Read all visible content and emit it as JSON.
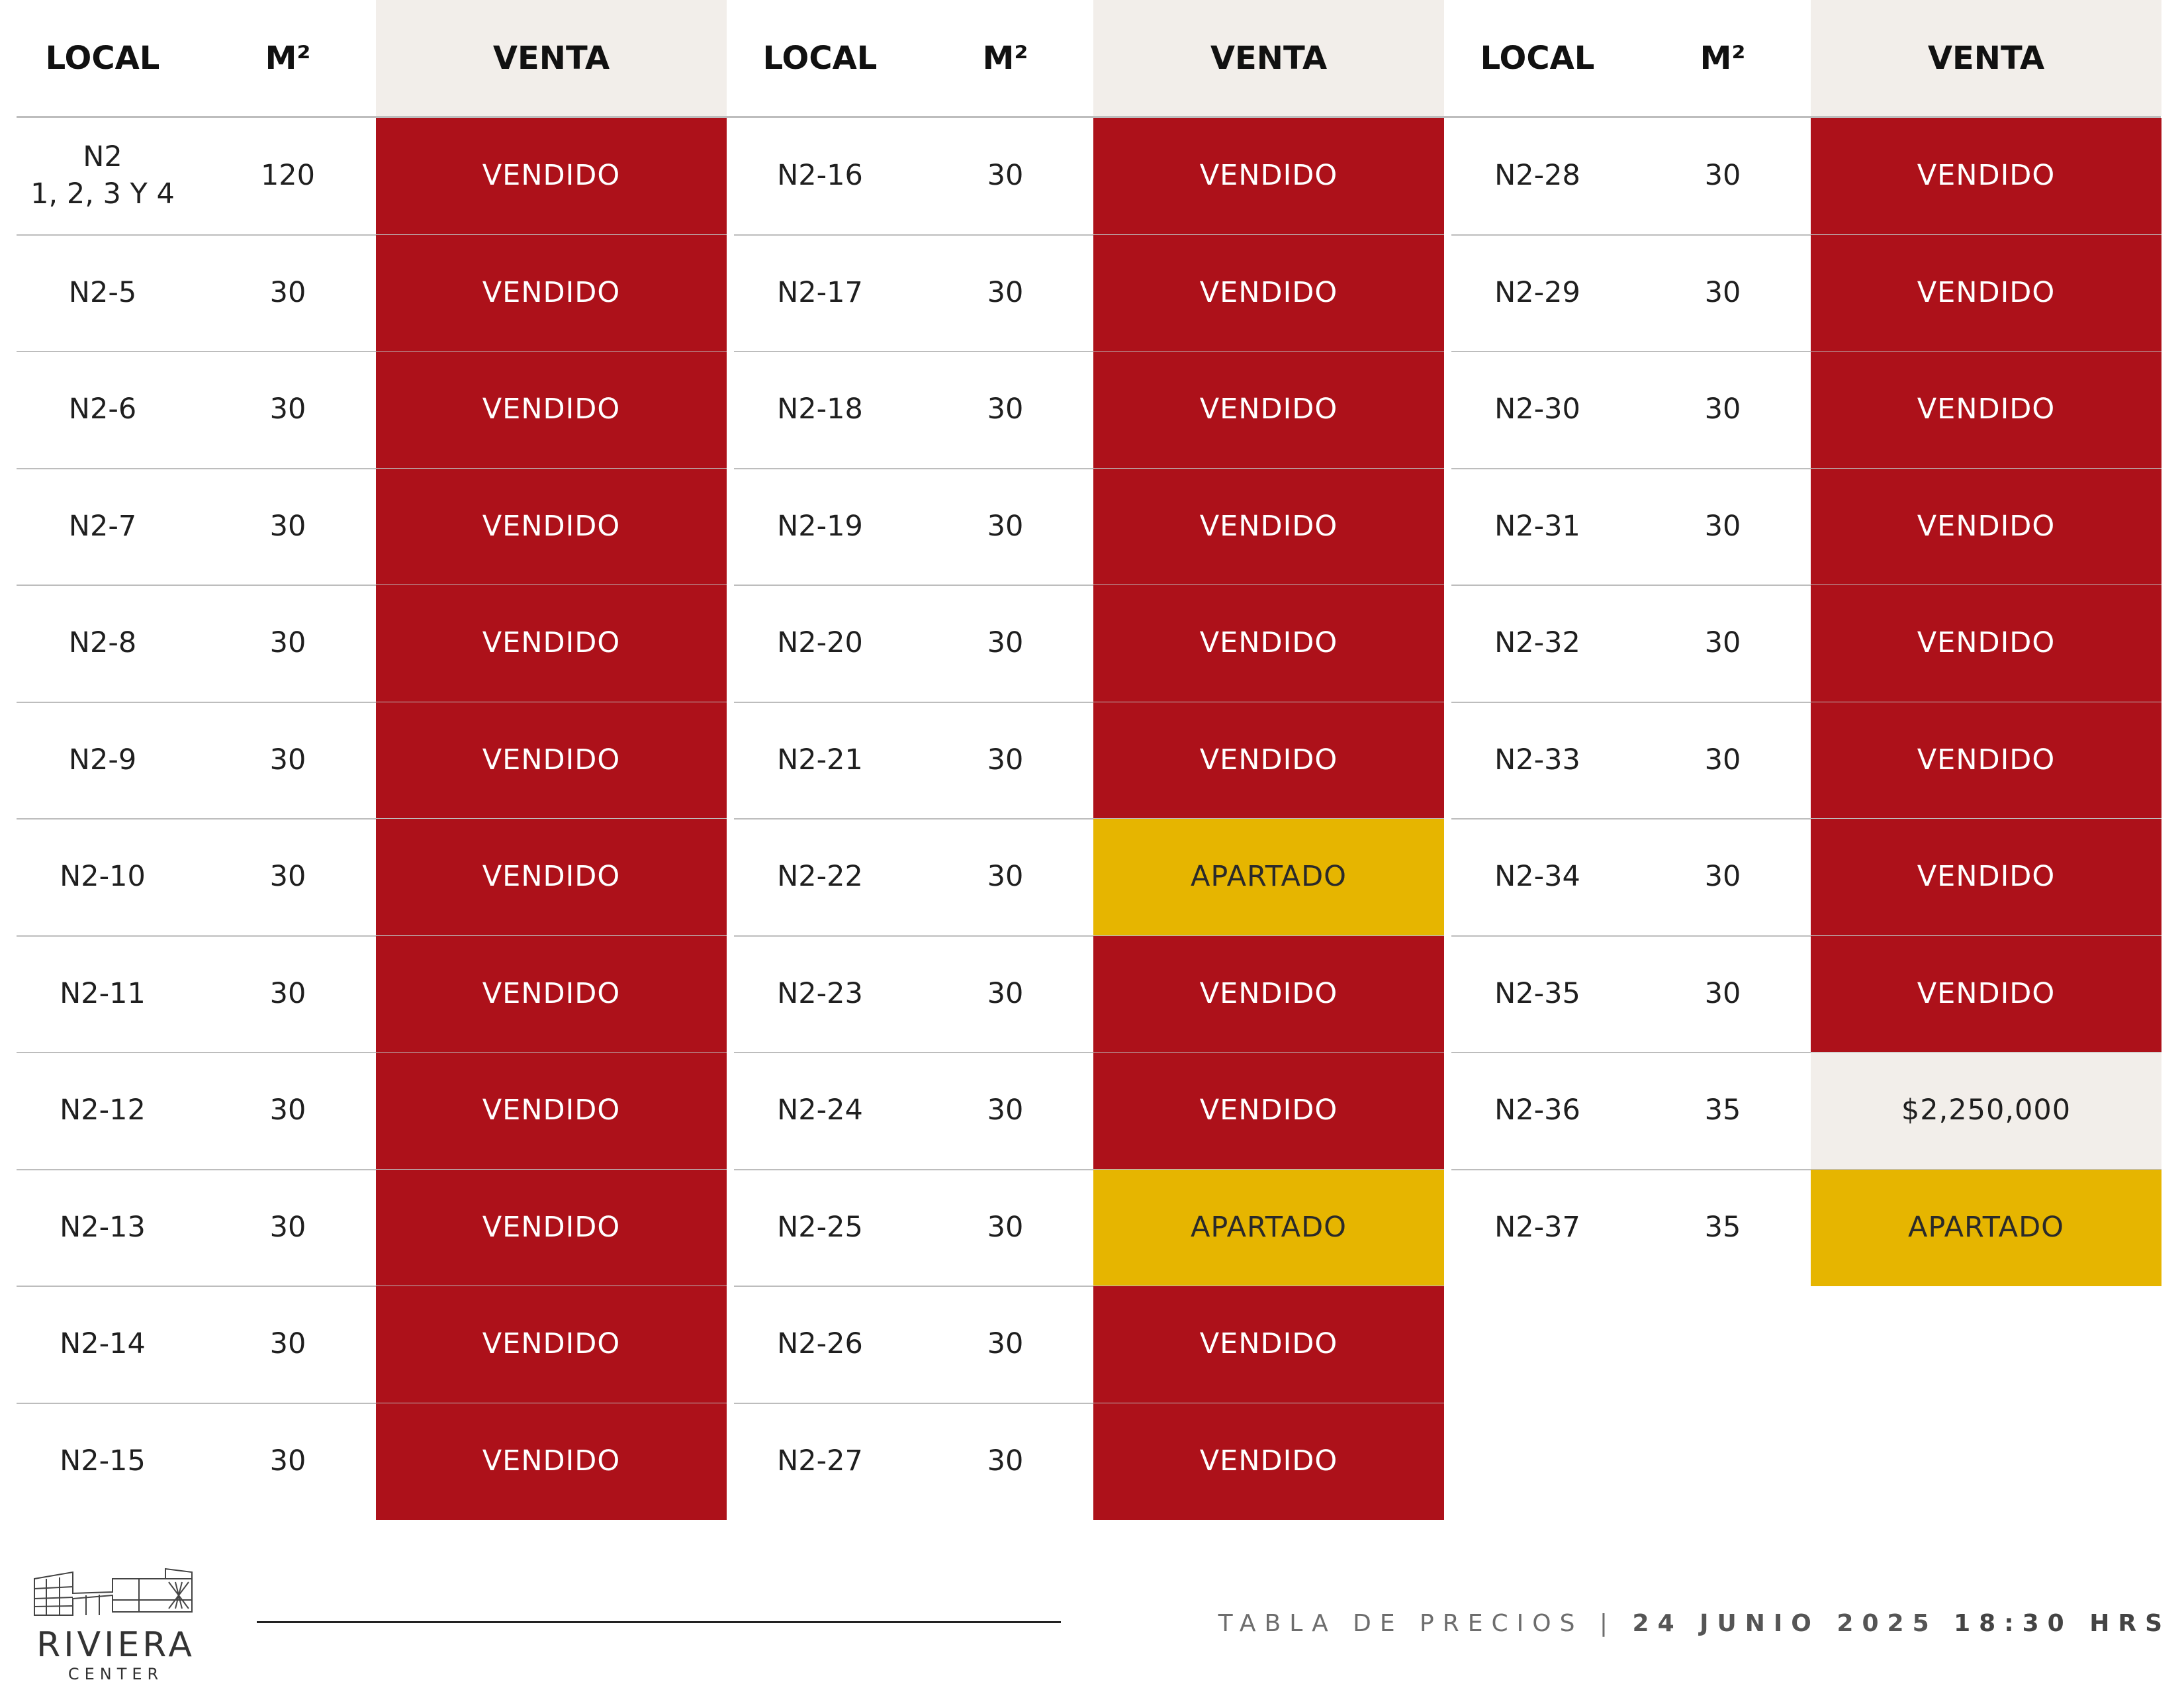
{
  "header": {
    "groups": [
      {
        "local": "LOCAL",
        "m2": "M²",
        "venta": "VENTA"
      },
      {
        "local": "LOCAL",
        "m2": "M²",
        "venta": "VENTA"
      },
      {
        "local": "LOCAL",
        "m2": "M²",
        "venta": "VENTA"
      }
    ]
  },
  "groups": [
    {
      "rows": [
        {
          "local": "N2\n1, 2, 3 Y 4",
          "m2": "120",
          "venta": "VENDIDO",
          "status": "vendido"
        },
        {
          "local": "N2-5",
          "m2": "30",
          "venta": "VENDIDO",
          "status": "vendido"
        },
        {
          "local": "N2-6",
          "m2": "30",
          "venta": "VENDIDO",
          "status": "vendido"
        },
        {
          "local": "N2-7",
          "m2": "30",
          "venta": "VENDIDO",
          "status": "vendido"
        },
        {
          "local": "N2-8",
          "m2": "30",
          "venta": "VENDIDO",
          "status": "vendido"
        },
        {
          "local": "N2-9",
          "m2": "30",
          "venta": "VENDIDO",
          "status": "vendido"
        },
        {
          "local": "N2-10",
          "m2": "30",
          "venta": "VENDIDO",
          "status": "vendido"
        },
        {
          "local": "N2-11",
          "m2": "30",
          "venta": "VENDIDO",
          "status": "vendido"
        },
        {
          "local": "N2-12",
          "m2": "30",
          "venta": "VENDIDO",
          "status": "vendido"
        },
        {
          "local": "N2-13",
          "m2": "30",
          "venta": "VENDIDO",
          "status": "vendido"
        },
        {
          "local": "N2-14",
          "m2": "30",
          "venta": "VENDIDO",
          "status": "vendido"
        },
        {
          "local": "N2-15",
          "m2": "30",
          "venta": "VENDIDO",
          "status": "vendido"
        }
      ]
    },
    {
      "rows": [
        {
          "local": "N2-16",
          "m2": "30",
          "venta": "VENDIDO",
          "status": "vendido"
        },
        {
          "local": "N2-17",
          "m2": "30",
          "venta": "VENDIDO",
          "status": "vendido"
        },
        {
          "local": "N2-18",
          "m2": "30",
          "venta": "VENDIDO",
          "status": "vendido"
        },
        {
          "local": "N2-19",
          "m2": "30",
          "venta": "VENDIDO",
          "status": "vendido"
        },
        {
          "local": "N2-20",
          "m2": "30",
          "venta": "VENDIDO",
          "status": "vendido"
        },
        {
          "local": "N2-21",
          "m2": "30",
          "venta": "VENDIDO",
          "status": "vendido"
        },
        {
          "local": "N2-22",
          "m2": "30",
          "venta": "APARTADO",
          "status": "apartado"
        },
        {
          "local": "N2-23",
          "m2": "30",
          "venta": "VENDIDO",
          "status": "vendido"
        },
        {
          "local": "N2-24",
          "m2": "30",
          "venta": "VENDIDO",
          "status": "vendido"
        },
        {
          "local": "N2-25",
          "m2": "30",
          "venta": "APARTADO",
          "status": "apartado"
        },
        {
          "local": "N2-26",
          "m2": "30",
          "venta": "VENDIDO",
          "status": "vendido"
        },
        {
          "local": "N2-27",
          "m2": "30",
          "venta": "VENDIDO",
          "status": "vendido"
        }
      ]
    },
    {
      "rows": [
        {
          "local": "N2-28",
          "m2": "30",
          "venta": "VENDIDO",
          "status": "vendido"
        },
        {
          "local": "N2-29",
          "m2": "30",
          "venta": "VENDIDO",
          "status": "vendido"
        },
        {
          "local": "N2-30",
          "m2": "30",
          "venta": "VENDIDO",
          "status": "vendido"
        },
        {
          "local": "N2-31",
          "m2": "30",
          "venta": "VENDIDO",
          "status": "vendido"
        },
        {
          "local": "N2-32",
          "m2": "30",
          "venta": "VENDIDO",
          "status": "vendido"
        },
        {
          "local": "N2-33",
          "m2": "30",
          "venta": "VENDIDO",
          "status": "vendido"
        },
        {
          "local": "N2-34",
          "m2": "30",
          "venta": "VENDIDO",
          "status": "vendido"
        },
        {
          "local": "N2-35",
          "m2": "30",
          "venta": "VENDIDO",
          "status": "vendido"
        },
        {
          "local": "N2-36",
          "m2": "35",
          "venta": "$2,250,000",
          "status": "price"
        },
        {
          "local": "N2-37",
          "m2": "35",
          "venta": "APARTADO",
          "status": "apartado"
        }
      ]
    }
  ],
  "footer": {
    "label": "TABLA DE PRECIOS",
    "separator": "|",
    "date": "24 JUNIO 2025",
    "time": "18:30 HRS"
  },
  "logo": {
    "name": "RIVIERA",
    "sub": "CENTER"
  },
  "colors": {
    "vendido": "#ad111a",
    "apartado": "#e6b500",
    "price_bg": "#f2eeea",
    "header_bg": "#f2eeea"
  }
}
